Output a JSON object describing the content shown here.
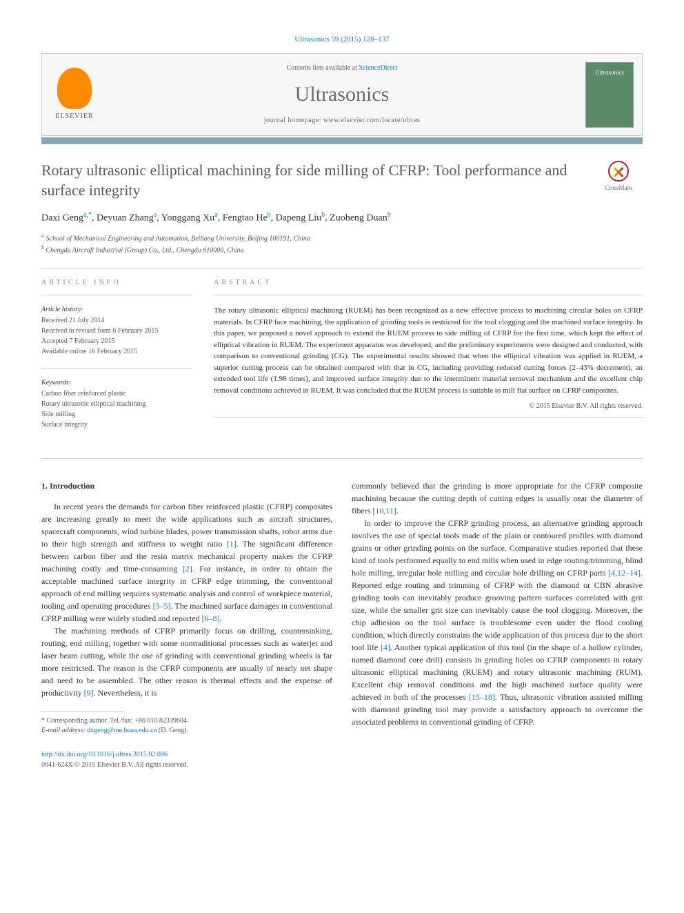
{
  "citation": "Ultrasonics 59 (2015) 128–137",
  "header": {
    "contents_prefix": "Contents lists available at ",
    "contents_link": "ScienceDirect",
    "journal": "Ultrasonics",
    "homepage_prefix": "journal homepage: ",
    "homepage_url": "www.elsevier.com/locate/ultras",
    "publisher": "ELSEVIER",
    "cover_text": "Ultrasonics"
  },
  "crossmark": "CrossMark",
  "title": "Rotary ultrasonic elliptical machining for side milling of CFRP: Tool performance and surface integrity",
  "authors_html": "Daxi Geng<a>a,</a><span class='asterisk'>*</span>, Deyuan Zhang<a>a</a>, Yonggang Xu<a>a</a>, Fengtao He<a>b</a>, Dapeng Liu<a>b</a>, Zuoheng Duan<a>b</a>",
  "affiliations": [
    "a School of Mechanical Engineering and Automation, Beihang University, Beijing 100191, China",
    "b Chengdu Aircraft Industrial (Group) Co., Ltd., Chengdu 610000, China"
  ],
  "info": {
    "heading": "ARTICLE INFO",
    "history_label": "Article history:",
    "history": [
      "Received 21 July 2014",
      "Received in revised form 6 February 2015",
      "Accepted 7 February 2015",
      "Available online 16 February 2015"
    ],
    "keywords_label": "Keywords:",
    "keywords": [
      "Carbon fiber reinforced plastic",
      "Rotary ultrasonic elliptical machining",
      "Side milling",
      "Surface integrity"
    ]
  },
  "abstract": {
    "heading": "ABSTRACT",
    "text": "The rotary ultrasonic elliptical machining (RUEM) has been recognized as a new effective process to machining circular holes on CFRP materials. In CFRP face machining, the application of grinding tools is restricted for the tool clogging and the machined surface integrity. In this paper, we proposed a novel approach to extend the RUEM process to side milling of CFRP for the first time, which kept the effect of elliptical vibration in RUEM. The experiment apparatus was developed, and the preliminary experiments were designed and conducted, with comparison to conventional grinding (CG). The experimental results showed that when the elliptical vibration was applied in RUEM, a superior cutting process can be obtained compared with that in CG, including providing reduced cutting forces (2–43% decrement), an extended tool life (1.98 times), and improved surface integrity due to the intermittent material removal mechanism and the excellent chip removal conditions achieved in RUEM. It was concluded that the RUEM process is suitable to mill flat surface on CFRP composites.",
    "copyright": "© 2015 Elsevier B.V. All rights reserved."
  },
  "section1": {
    "heading": "1. Introduction",
    "paragraphs_left": [
      "In recent years the demands for carbon fiber reinforced plastic (CFRP) composites are increasing greatly to meet the wide applications such as aircraft structures, spacecraft components, wind turbine blades, power transmission shafts, robot arms due to their high strength and stiffness to weight ratio <a>[1]</a>. The significant difference between carbon fiber and the resin matrix mechanical property makes the CFRP machining costly and time-consuming <a>[2]</a>. For instance, in order to obtain the acceptable machined surface integrity in CFRP edge trimming, the conventional approach of end milling requires systematic analysis and control of workpiece material, tooling and operating procedures <a>[3–5]</a>. The machined surface damages in conventional CFRP milling were widely studied and reported <a>[6–8]</a>.",
      "The machining methods of CFRP primarily focus on drilling, countersinking, routing, end milling, together with some nontraditional processes such as waterjet and laser beam cutting, while the use of grinding with conventional grinding wheels is far more restricted. The reason is the CFRP components are usually of nearly net shape and need to be assembled. The other reason is thermal effects and the expense of productivity <a>[9]</a>. Nevertheless, it is"
    ],
    "paragraphs_right": [
      "commonly believed that the grinding is more appropriate for the CFRP composite machining because the cutting depth of cutting edges is usually near the diameter of fibers <a>[10,11]</a>.",
      "In order to improve the CFRP grinding process, an alternative grinding approach involves the use of special tools made of the plain or contoured profiles with diamond grains or other grinding points on the surface. Comparative studies reported that these kind of tools performed equally to end mills when used in edge routing/trimming, blind hole milling, irregular hole milling and circular hole drilling on CFRP parts <a>[4,12–14]</a>. Reported edge routing and trimming of CFRP with the diamond or CBN abrasive grinding tools can inevitably produce grooving pattern surfaces correlated with grit size, while the smaller grit size can inevitably cause the tool clogging. Moreover, the chip adhesion on the tool surface is troublesome even under the flood cooling condition, which directly constrains the wide application of this process due to the short tool life <a>[4]</a>. Another typical application of this tool (in the shape of a hollow cylinder, named diamond core drill) consists in grinding holes on CFRP components in rotary ultrasonic elliptical machining (RUEM) and rotary ultrasonic machining (RUM). Excellent chip removal conditions and the high machined surface quality were achieved in both of the processes <a>[15–18]</a>. Thus, ultrasonic vibration assisted milling with diamond grinding tool may provide a satisfactory approach to overcome the associated problems in conventional grinding of CFRP."
    ]
  },
  "footnote": {
    "corr": "* Corresponding author. Tel./fax: +86 010 82339604.",
    "email_label": "E-mail address: ",
    "email": "dxgeng@me.buaa.edu.cn",
    "email_name": " (D. Geng)."
  },
  "footer": {
    "doi": "http://dx.doi.org/10.1016/j.ultras.2015.02.006",
    "issn_copy": "0041-624X/© 2015 Elsevier B.V. All rights reserved."
  }
}
